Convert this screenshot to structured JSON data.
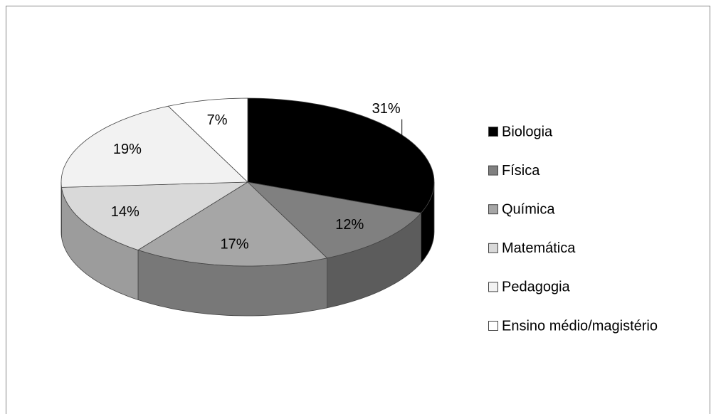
{
  "chart_data": {
    "type": "pie",
    "categories": [
      "Biologia",
      "Física",
      "Química",
      "Matemática",
      "Pedagogia",
      "Ensino médio/magistério"
    ],
    "values": [
      31,
      12,
      17,
      14,
      19,
      7
    ],
    "value_labels": [
      "31%",
      "12%",
      "17%",
      "14%",
      "19%",
      "7%"
    ],
    "colors": [
      "#000000",
      "#808080",
      "#a6a6a6",
      "#d9d9d9",
      "#f2f2f2",
      "#ffffff"
    ],
    "legend": "right"
  }
}
